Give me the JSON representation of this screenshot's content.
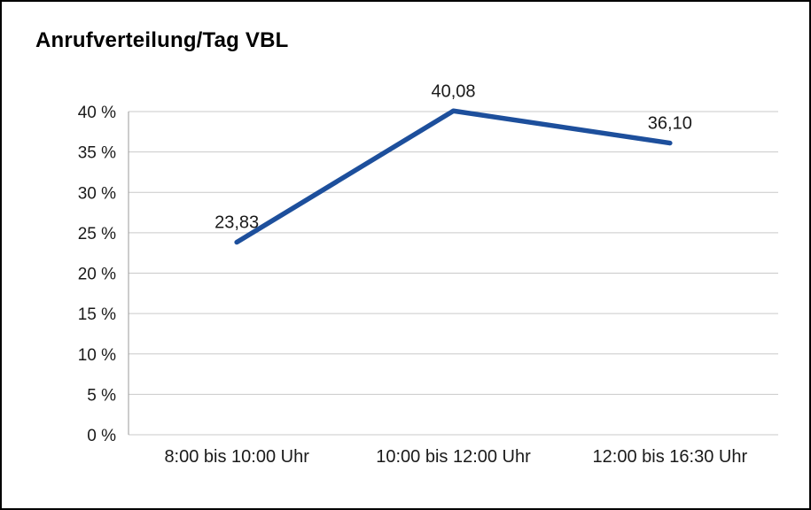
{
  "frame": {
    "background": "#ffffff",
    "border_color": "#000000"
  },
  "chart_data": {
    "type": "line",
    "title": "Anrufverteilung/Tag VBL",
    "categories": [
      "8:00 bis 10:00 Uhr",
      "10:00 bis 12:00 Uhr",
      "12:00 bis 16:30 Uhr"
    ],
    "values": [
      23.83,
      40.08,
      36.1
    ],
    "point_labels": [
      "23,83",
      "40,08",
      "36,10"
    ],
    "ylim": [
      0,
      40
    ],
    "ytick_step": 5,
    "yticks": [
      {
        "value": 0,
        "label": "0 %"
      },
      {
        "value": 5,
        "label": "5 %"
      },
      {
        "value": 10,
        "label": "10 %"
      },
      {
        "value": 15,
        "label": "15 %"
      },
      {
        "value": 20,
        "label": "20 %"
      },
      {
        "value": 25,
        "label": "25 %"
      },
      {
        "value": 30,
        "label": "30 %"
      },
      {
        "value": 35,
        "label": "35 %"
      },
      {
        "value": 40,
        "label": "40 %"
      }
    ],
    "grid": true,
    "legend": "none",
    "line_color": "#1d4f9c",
    "grid_color": "#c9c9c9",
    "axis_color": "#9b9b9b",
    "text_color": "#1a1a1a"
  }
}
